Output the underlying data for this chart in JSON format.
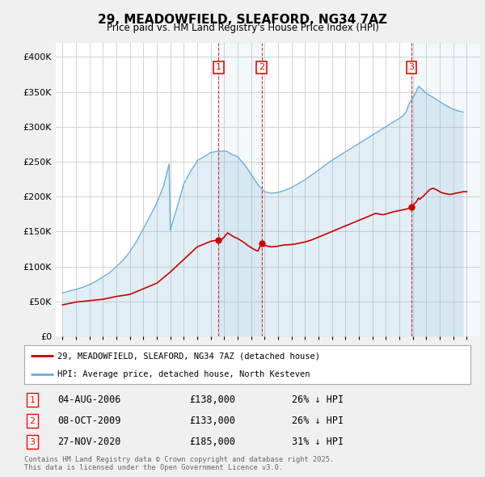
{
  "title": "29, MEADOWFIELD, SLEAFORD, NG34 7AZ",
  "subtitle": "Price paid vs. HM Land Registry's House Price Index (HPI)",
  "hpi_label": "HPI: Average price, detached house, North Kesteven",
  "price_label": "29, MEADOWFIELD, SLEAFORD, NG34 7AZ (detached house)",
  "legend_note": "Contains HM Land Registry data © Crown copyright and database right 2025.\nThis data is licensed under the Open Government Licence v3.0.",
  "transactions": [
    {
      "num": 1,
      "date": "04-AUG-2006",
      "price": 138000,
      "pct": "26%",
      "dir": "↓",
      "x": 2006.58
    },
    {
      "num": 2,
      "date": "08-OCT-2009",
      "price": 133000,
      "pct": "26%",
      "dir": "↓",
      "x": 2009.77
    },
    {
      "num": 3,
      "date": "27-NOV-2020",
      "price": 185000,
      "pct": "31%",
      "dir": "↓",
      "x": 2020.9
    }
  ],
  "ylim": [
    0,
    420000
  ],
  "xlim": [
    1994.5,
    2026.0
  ],
  "hpi_color": "#6baed6",
  "price_color": "#cc0000",
  "vline_color": "#cc0000",
  "background_color": "#f0f0f0",
  "plot_bg_color": "#ffffff",
  "grid_color": "#cccccc",
  "xticks": [
    1995,
    1996,
    1997,
    1998,
    1999,
    2000,
    2001,
    2002,
    2003,
    2004,
    2005,
    2006,
    2007,
    2008,
    2009,
    2010,
    2011,
    2012,
    2013,
    2014,
    2015,
    2016,
    2017,
    2018,
    2019,
    2020,
    2021,
    2022,
    2023,
    2024,
    2025
  ],
  "yticks": [
    0,
    50000,
    100000,
    150000,
    200000,
    250000,
    300000,
    350000,
    400000
  ],
  "ytick_labels": [
    "£0",
    "£50K",
    "£100K",
    "£150K",
    "£200K",
    "£250K",
    "£300K",
    "£350K",
    "£400K"
  ]
}
